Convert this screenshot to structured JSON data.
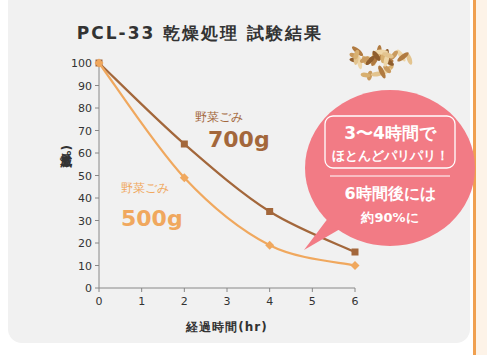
{
  "chart_data": {
    "type": "line",
    "title": "PCL-33 乾燥処理 試験結果",
    "x_label": "経過時間(hr)",
    "y_label": "減量(%)",
    "x": [
      0,
      2,
      4,
      6
    ],
    "series": [
      {
        "name": "野菜ごみ 700g",
        "color": "#a3673b",
        "marker": "square",
        "line_style": "smooth",
        "values": [
          100,
          64,
          34,
          16
        ]
      },
      {
        "name": "野菜ごみ 500g",
        "color": "#f0a85e",
        "marker": "diamond",
        "line_style": "smooth",
        "values": [
          100,
          49,
          19,
          10
        ]
      }
    ],
    "xlim": [
      0,
      6
    ],
    "xticks": [
      0,
      1,
      2,
      3,
      4,
      5,
      6
    ],
    "ylim": [
      0,
      100
    ],
    "yticks": [
      0,
      10,
      20,
      30,
      40,
      50,
      60,
      70,
      80,
      90,
      100
    ],
    "grid": false,
    "annotations": [
      "3〜4時間で",
      "ほとんどパリパリ！",
      "6時間後には",
      "約90%に"
    ]
  }
}
